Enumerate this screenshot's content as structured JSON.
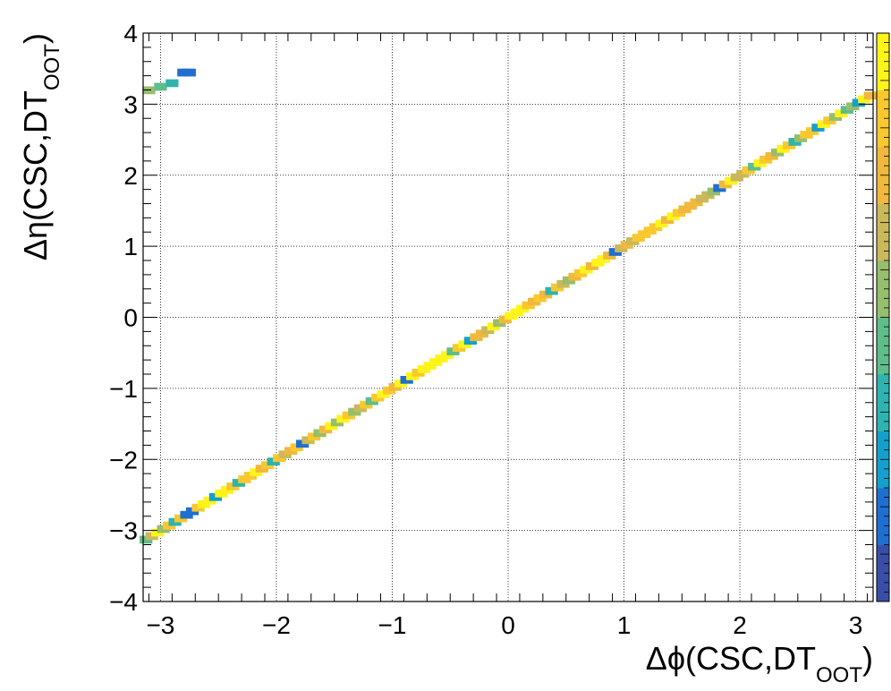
{
  "chart_data": {
    "type": "heatmap",
    "title": "",
    "xlabel": {
      "main": "Δϕ(CSC,DT",
      "sub": "OOT",
      "close": ")"
    },
    "ylabel": {
      "main": "Δη(CSC,DT",
      "sub": "OOT",
      "close": ")"
    },
    "xlim": [
      -3.15,
      3.15
    ],
    "ylim": [
      -4,
      4
    ],
    "x_ticks": [
      -3,
      -2,
      -1,
      0,
      1,
      2,
      3
    ],
    "x_tick_labels": [
      "−3",
      "−2",
      "−1",
      "0",
      "1",
      "2",
      "3"
    ],
    "y_ticks": [
      -4,
      -3,
      -2,
      -1,
      0,
      1,
      2,
      3,
      4
    ],
    "y_tick_labels": [
      "−4",
      "−3",
      "−2",
      "−1",
      "0",
      "1",
      "2",
      "3",
      "4"
    ],
    "grid": true,
    "colorbar": true,
    "diagonal": {
      "relation": "eta = phi",
      "x_range": [
        -3.15,
        3.15
      ],
      "bin_width": 0.1
    },
    "wrap_band": {
      "x_range": [
        -3.15,
        -2.75
      ],
      "eta_offset": 6.28
    },
    "colors": [
      "#3a4ea8",
      "#1f6fd1",
      "#14a0cc",
      "#2eb3b0",
      "#5fbd8a",
      "#97be6c",
      "#c9b95a",
      "#f0b83c",
      "#f8c82e",
      "#fff41a"
    ],
    "cells": [
      {
        "x": -3.1,
        "y": 3.2,
        "level": 5
      },
      {
        "x": -3.0,
        "y": 3.25,
        "level": 4
      },
      {
        "x": -2.9,
        "y": 3.3,
        "level": 3
      },
      {
        "x": -2.8,
        "y": 3.45,
        "level": 1
      },
      {
        "x": -2.75,
        "y": 3.45,
        "level": 1
      },
      {
        "x": -3.1,
        "y": -3.1,
        "level": 4
      },
      {
        "x": -3.0,
        "y": -3.0,
        "level": 5
      },
      {
        "x": -2.9,
        "y": -2.9,
        "level": 3
      },
      {
        "x": -2.55,
        "y": -2.6,
        "level": 2
      },
      {
        "x": -2.35,
        "y": -2.35,
        "level": 3
      },
      {
        "x": -2.05,
        "y": -2.05,
        "level": 3
      },
      {
        "x": -1.8,
        "y": -1.75,
        "level": 1
      },
      {
        "x": -1.5,
        "y": -1.5,
        "level": 5
      },
      {
        "x": -1.2,
        "y": -1.15,
        "level": 4
      },
      {
        "x": -0.9,
        "y": -0.85,
        "level": 1
      },
      {
        "x": -0.5,
        "y": -0.5,
        "level": 4
      },
      {
        "x": -0.35,
        "y": -0.3,
        "level": 2
      },
      {
        "x": -0.1,
        "y": -0.05,
        "level": 5
      },
      {
        "x": 0.35,
        "y": 0.3,
        "level": 3
      },
      {
        "x": 0.9,
        "y": 0.85,
        "level": 1
      },
      {
        "x": 1.8,
        "y": 1.75,
        "level": 1
      },
      {
        "x": 2.1,
        "y": 2.05,
        "level": 4
      },
      {
        "x": 2.45,
        "y": 2.4,
        "level": 3
      },
      {
        "x": 2.65,
        "y": 2.6,
        "level": 2
      },
      {
        "x": 2.9,
        "y": 2.9,
        "level": 4
      },
      {
        "x": 3.0,
        "y": 2.95,
        "level": 2
      }
    ]
  }
}
